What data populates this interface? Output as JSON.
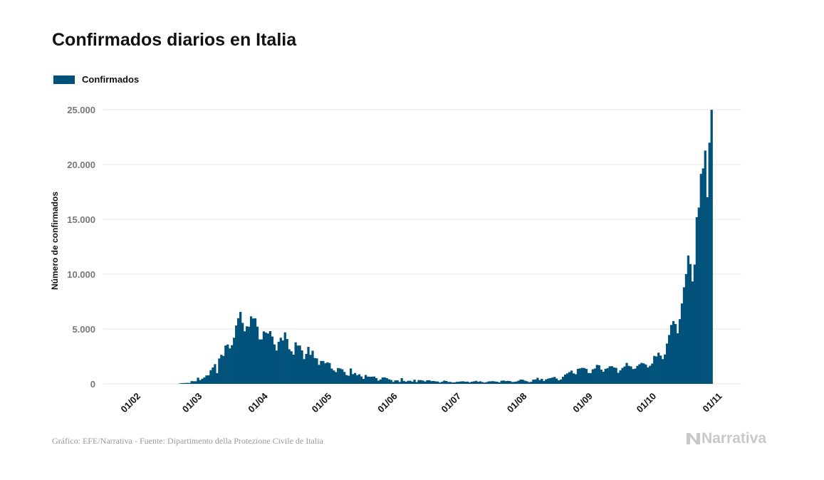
{
  "chart_data": {
    "type": "bar",
    "title": "Confirmados diarios en Italia",
    "legend": [
      {
        "name": "Confirmados",
        "color": "#00527a"
      }
    ],
    "legend_position": "top-left",
    "xlabel": "",
    "ylabel": "Número de confirmados",
    "ylim": [
      0,
      25000
    ],
    "yticks": [
      0,
      5000,
      10000,
      15000,
      20000,
      25000
    ],
    "ytick_labels": [
      "0",
      "5.000",
      "10.000",
      "15.000",
      "20.000",
      "25.000"
    ],
    "xtick_labels": [
      "01/02",
      "01/03",
      "01/04",
      "01/05",
      "01/06",
      "01/07",
      "01/08",
      "01/09",
      "01/10",
      "01/11"
    ],
    "grid": true,
    "start_date": "2020-01-31",
    "values": [
      2,
      0,
      0,
      0,
      0,
      0,
      1,
      0,
      0,
      0,
      0,
      0,
      0,
      0,
      0,
      0,
      0,
      0,
      0,
      0,
      0,
      20,
      62,
      73,
      77,
      93,
      78,
      250,
      238,
      240,
      566,
      342,
      466,
      587,
      769,
      778,
      1247,
      1492,
      1797,
      977,
      2313,
      2651,
      2547,
      3497,
      3590,
      3233,
      3526,
      4207,
      5322,
      5986,
      6557,
      5560,
      4789,
      5249,
      5210,
      6153,
      5959,
      5974,
      5217,
      4050,
      4053,
      4782,
      4668,
      4585,
      4805,
      4316,
      3599,
      3039,
      3836,
      4204,
      3951,
      4694,
      4092,
      3153,
      2972,
      2667,
      3786,
      3493,
      3491,
      3047,
      2256,
      2729,
      3370,
      2646,
      3021,
      2357,
      2324,
      1739,
      2091,
      2086,
      1872,
      1965,
      1900,
      1389,
      1221,
      1075,
      1444,
      1401,
      1327,
      1083,
      802,
      744,
      1402,
      888,
      992,
      789,
      875,
      675,
      451,
      813,
      665,
      642,
      652,
      669,
      531,
      300,
      397,
      584,
      593,
      516,
      416,
      355,
      178,
      318,
      321,
      177,
      518,
      270,
      197,
      280,
      283,
      202,
      379,
      163,
      346,
      338,
      301,
      210,
      329,
      333,
      251,
      262,
      224,
      218,
      122,
      190,
      296,
      259,
      175,
      174,
      126,
      142,
      187,
      201,
      223,
      235,
      192,
      208,
      138,
      193,
      229,
      276,
      188,
      234,
      169,
      114,
      162,
      230,
      233,
      249,
      219,
      190,
      129,
      282,
      306,
      252,
      275,
      255,
      170,
      181,
      212,
      289,
      386,
      379,
      295,
      239,
      159,
      190,
      384,
      402,
      552,
      347,
      463,
      259,
      412,
      481,
      523,
      574,
      629,
      479,
      320,
      403,
      642,
      845,
      947,
      1071,
      1210,
      953,
      878,
      1367,
      1411,
      1462,
      1444,
      1365,
      996,
      978,
      1326,
      1397,
      1733,
      1695,
      1297,
      1108,
      1370,
      1434,
      1597,
      1616,
      1501,
      1458,
      1008,
      1229,
      1452,
      1585,
      1907,
      1638,
      1587,
      1350,
      1392,
      1640,
      1786,
      1912,
      1869,
      1766,
      1494,
      1648,
      1851,
      2548,
      2499,
      2844,
      2578,
      2257,
      2677,
      3678,
      4458,
      5372,
      5724,
      5456,
      4619,
      5901,
      7332,
      8804,
      10010,
      11705,
      10925,
      9338,
      10874,
      15199,
      16079,
      19143,
      19644,
      21273,
      17012,
      21994,
      24991
    ]
  },
  "footer": {
    "source": "Gráfico: EFE/Narrativa - Fuente: Dipartimento della Protezione Civile de Italia",
    "brand": "Narrativa"
  }
}
